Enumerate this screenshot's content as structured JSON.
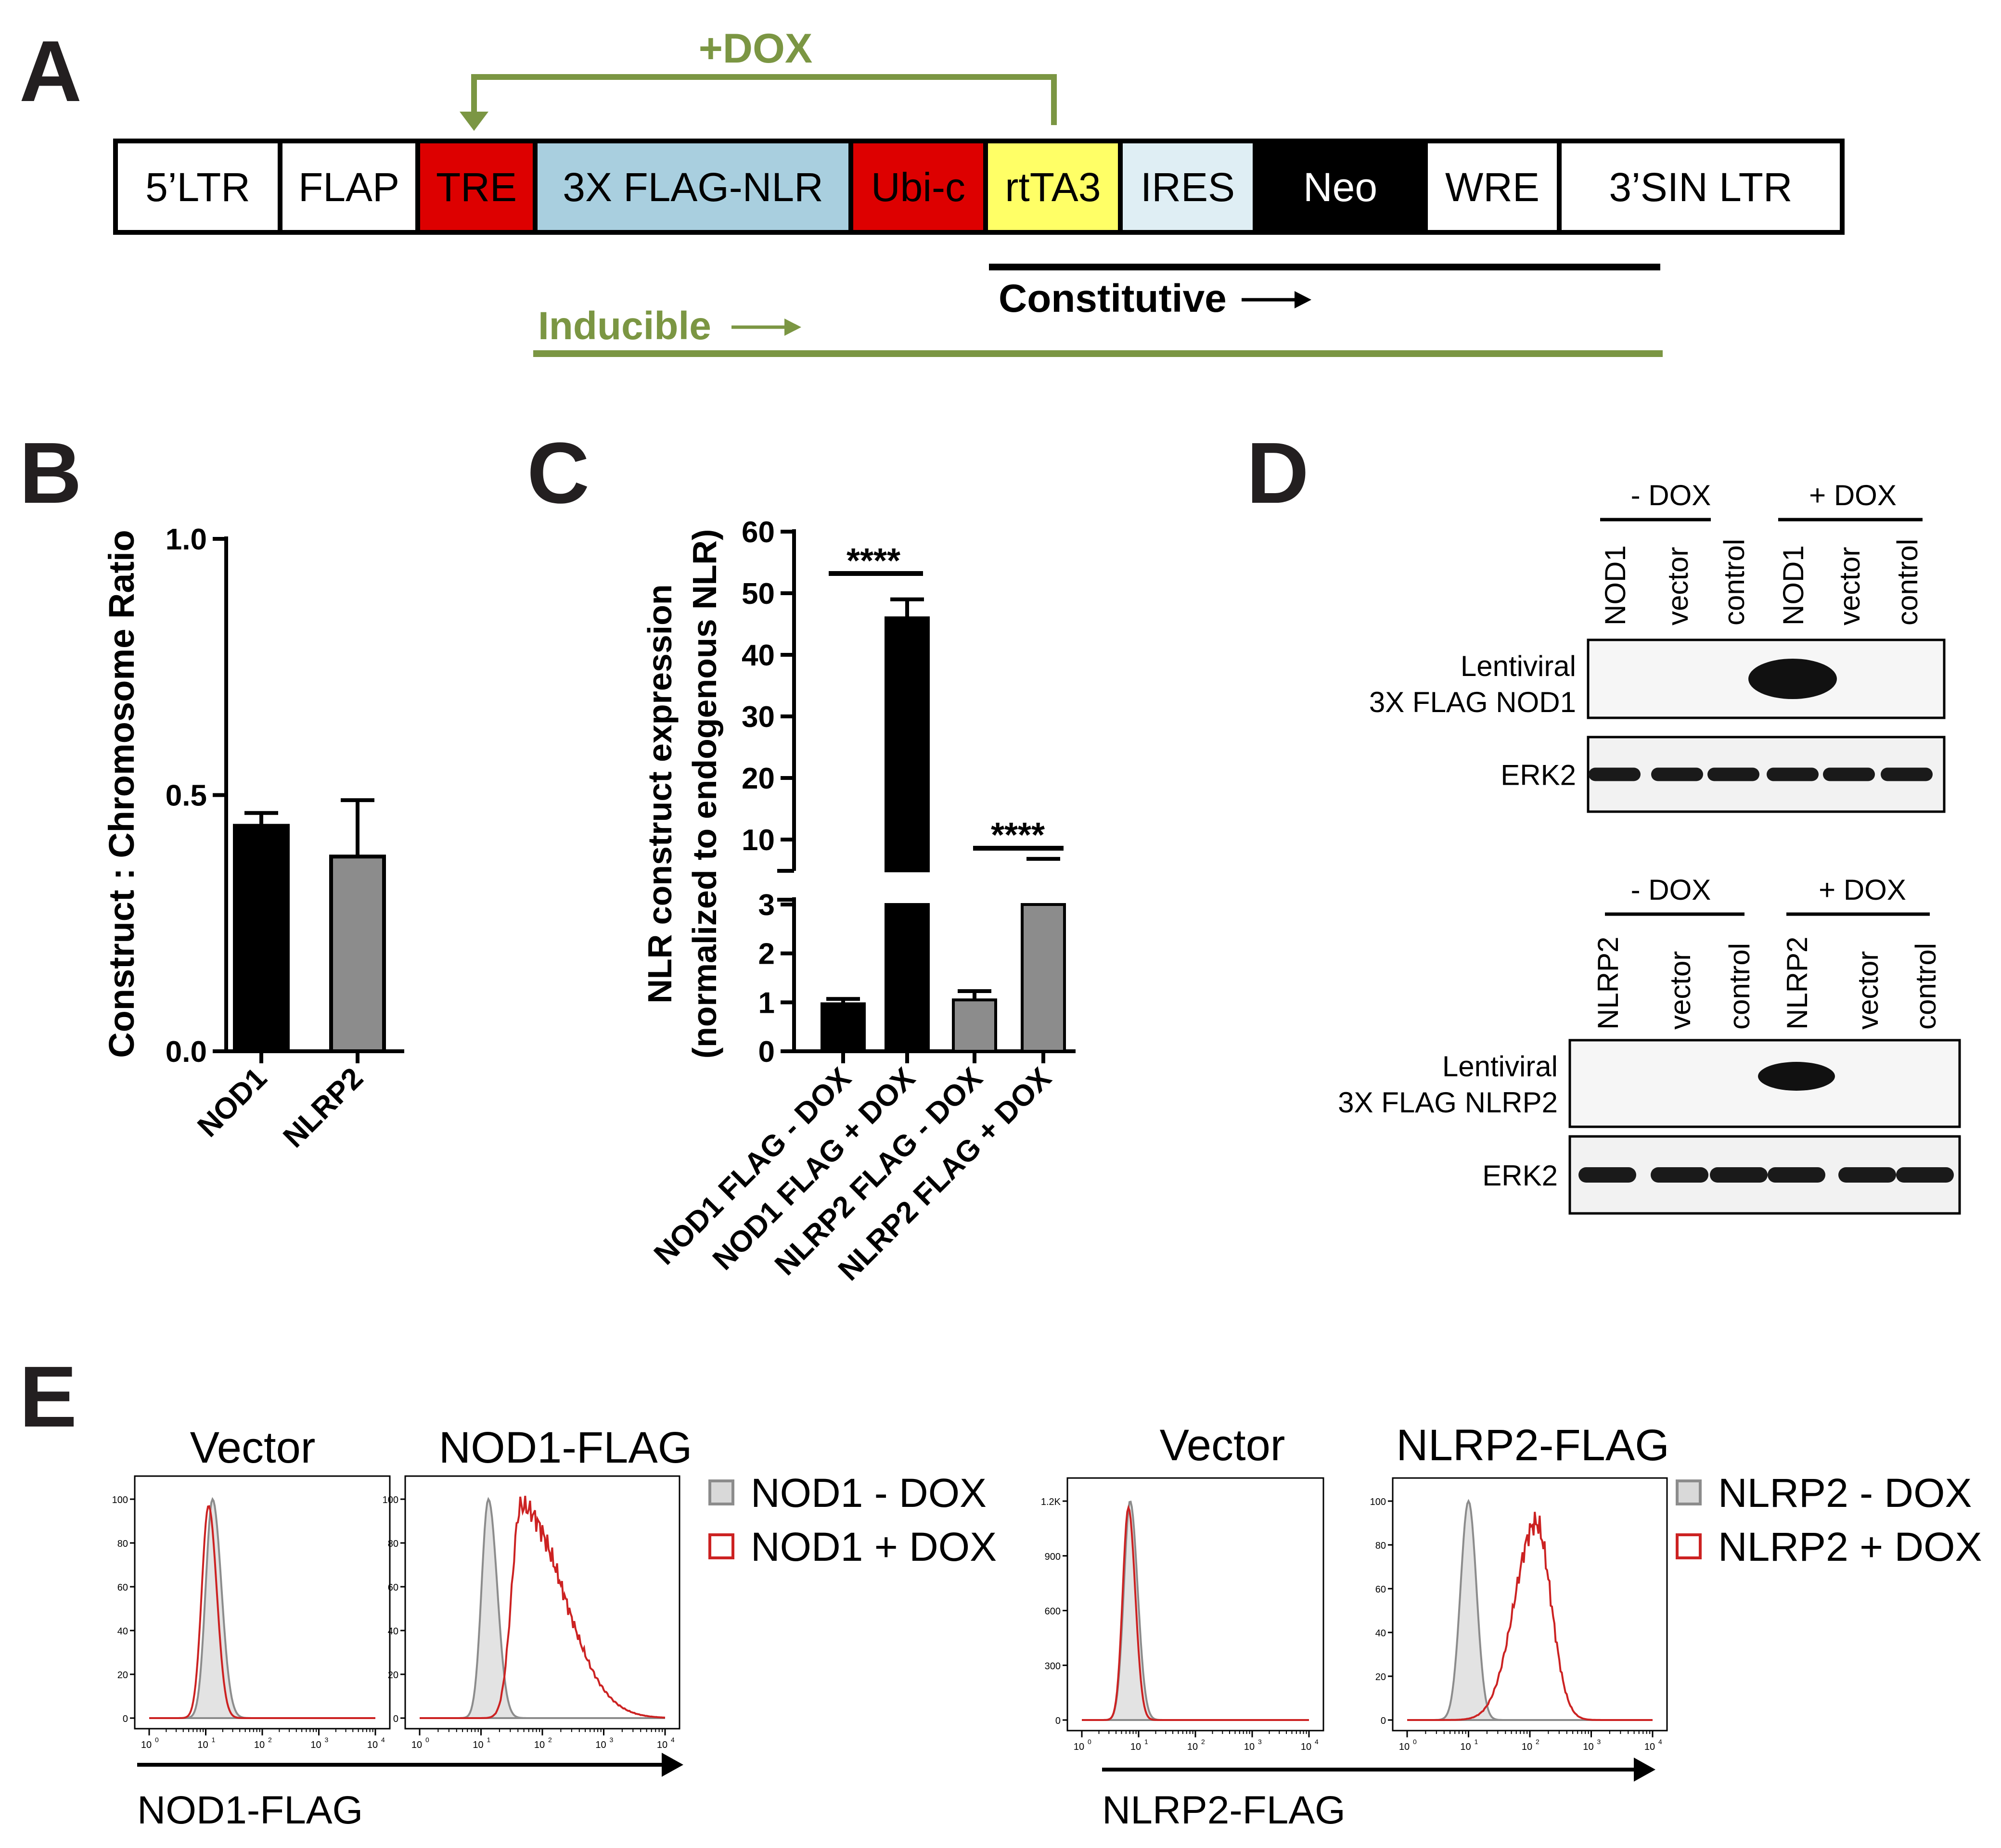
{
  "panels": {
    "A": "A",
    "B": "B",
    "C": "C",
    "D": "D",
    "E": "E"
  },
  "panelA": {
    "segments": [
      {
        "label": "5’LTR",
        "color": "#ffffff",
        "text_color": "#000000"
      },
      {
        "label": "FLAP",
        "color": "#ffffff",
        "text_color": "#000000"
      },
      {
        "label": "TRE",
        "color": "#dd0000",
        "text_color": "#000000"
      },
      {
        "label": "3X FLAG-NLR",
        "color": "#a9cfdf",
        "text_color": "#000000"
      },
      {
        "label": "Ubi-c",
        "color": "#dd0000",
        "text_color": "#000000"
      },
      {
        "label": "rtTA3",
        "color": "#ffff66",
        "text_color": "#000000"
      },
      {
        "label": "IRES",
        "color": "#dfeef4",
        "text_color": "#000000"
      },
      {
        "label": "Neo",
        "color": "#000000",
        "text_color": "#ffffff"
      },
      {
        "label": "WRE",
        "color": "#ffffff",
        "text_color": "#000000"
      },
      {
        "label": "3’SIN LTR",
        "color": "#ffffff",
        "text_color": "#000000"
      }
    ],
    "dox_label": "+DOX",
    "constitutive_label": "Constitutive",
    "inducible_label": "Inducible",
    "accent_color": "#7b9643"
  },
  "chart_data": [
    {
      "panel": "B",
      "type": "bar",
      "categories": [
        "NOD1",
        "NLRP2"
      ],
      "values": [
        0.44,
        0.38
      ],
      "errors": [
        0.025,
        0.11
      ],
      "colors": [
        "#000000",
        "#8c8c8c"
      ],
      "ylabel": "Construct : Chromosome Ratio",
      "ylim": [
        0,
        1.0
      ],
      "yticks": [
        "0.0",
        "0.5",
        "1.0"
      ]
    },
    {
      "panel": "C",
      "type": "bar",
      "categories": [
        "NOD1 FLAG - DOX",
        "NOD1 FLAG + DOX",
        "NLRP2 FLAG - DOX",
        "NLRP2 FLAG + DOX"
      ],
      "values": [
        0.97,
        46,
        1.05,
        5.5
      ],
      "errors": [
        0.1,
        3,
        0.18,
        0.4
      ],
      "colors": [
        "#000000",
        "#000000",
        "#8c8c8c",
        "#8c8c8c"
      ],
      "ylabel": "NLR construct expression",
      "ylabel2": "(normalized to endogenous NLR)",
      "yticks_low": [
        "0",
        "1",
        "2",
        "3"
      ],
      "yticks_high": [
        "10",
        "20",
        "30",
        "40",
        "50",
        "60"
      ],
      "significance": [
        "****",
        "****"
      ]
    },
    {
      "panel": "E",
      "type": "area",
      "plots": [
        {
          "title": "Vector",
          "yticks": [
            "0",
            "20",
            "40",
            "60",
            "80",
            "100"
          ]
        },
        {
          "title": "NOD1-FLAG",
          "yticks": [
            "0",
            "20",
            "40",
            "60",
            "80",
            "100"
          ]
        },
        {
          "title": "Vector",
          "yticks": [
            "0",
            "300",
            "600",
            "900",
            "1.2K"
          ]
        },
        {
          "title": "NLRP2-FLAG",
          "yticks": [
            "0",
            "20",
            "40",
            "60",
            "80",
            "100"
          ]
        }
      ],
      "xticks": [
        "10",
        "10",
        "10",
        "10",
        "10"
      ],
      "xtick_exps": [
        "0",
        "1",
        "2",
        "3",
        "4"
      ],
      "xlabel_left": "NOD1-FLAG",
      "xlabel_right": "NLRP2-FLAG",
      "legend_left": [
        "NOD1 - DOX",
        "NOD1 + DOX"
      ],
      "legend_right": [
        "NLRP2 - DOX",
        "NLRP2 + DOX"
      ],
      "series_colors": [
        "#8c8c8c",
        "#cc2222"
      ]
    }
  ],
  "panelD": {
    "top": {
      "minus_dox": "- DOX",
      "plus_dox": "+ DOX",
      "lanes": [
        "NOD1",
        "vector",
        "control",
        "NOD1",
        "vector",
        "control"
      ],
      "label1a": "Lentiviral",
      "label1b": "3X FLAG NOD1",
      "label2": "ERK2"
    },
    "bottom": {
      "minus_dox": "- DOX",
      "plus_dox": "+ DOX",
      "lanes": [
        "NLRP2",
        "vector",
        "control",
        "NLRP2",
        "vector",
        "control"
      ],
      "label1a": "Lentiviral",
      "label1b": "3X FLAG NLRP2",
      "label2": "ERK2"
    }
  }
}
